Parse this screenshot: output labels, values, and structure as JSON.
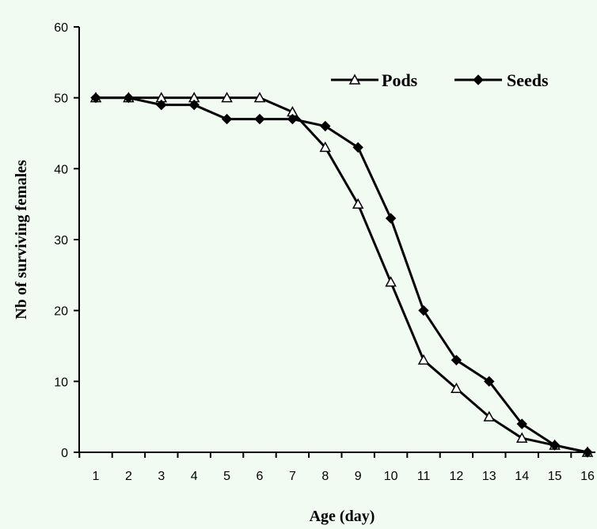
{
  "chart_data": {
    "type": "line",
    "xlabel": "Age (day)",
    "ylabel": "Nb of surviving females",
    "x": [
      1,
      2,
      3,
      4,
      5,
      6,
      7,
      8,
      9,
      10,
      11,
      12,
      13,
      14,
      15,
      16
    ],
    "xticks": [
      "1",
      "2",
      "3",
      "4",
      "5",
      "6",
      "7",
      "8",
      "9",
      "10",
      "11",
      "12",
      "13",
      "14",
      "15",
      "16"
    ],
    "ylim": [
      0,
      60
    ],
    "yticks": [
      0,
      10,
      20,
      30,
      40,
      50,
      60
    ],
    "grid": false,
    "legend_position": "top-right",
    "series": [
      {
        "name": "Pods",
        "marker": "open-triangle",
        "color": "#000000",
        "values": [
          50,
          50,
          50,
          50,
          50,
          50,
          48,
          43,
          35,
          24,
          13,
          9,
          5,
          2,
          1,
          0
        ]
      },
      {
        "name": "Seeds",
        "marker": "filled-diamond",
        "color": "#000000",
        "values": [
          50,
          50,
          49,
          49,
          47,
          47,
          47,
          46,
          43,
          33,
          20,
          13,
          10,
          4,
          1,
          0
        ]
      }
    ]
  }
}
